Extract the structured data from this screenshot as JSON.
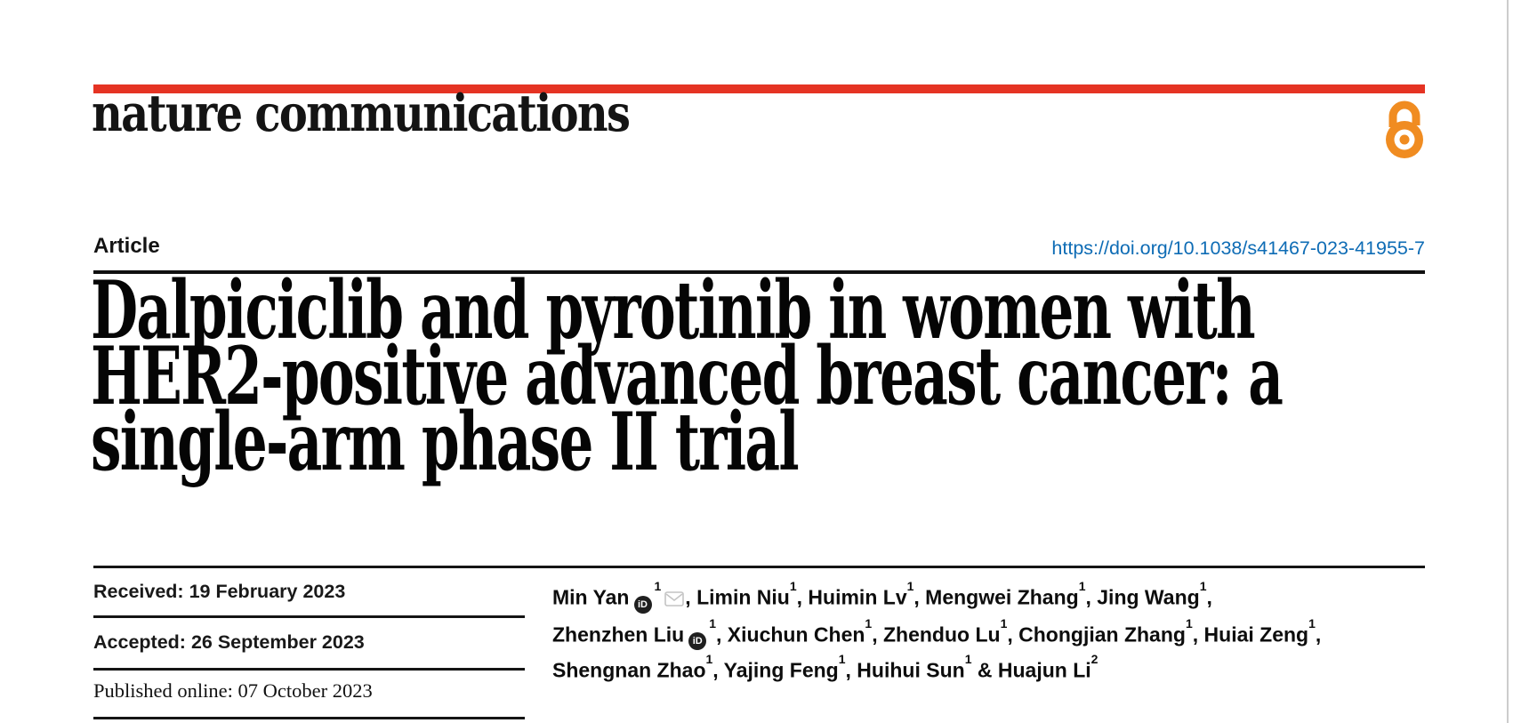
{
  "theme": {
    "accent_red": "#e53323",
    "open_access_orange": "#f08c21",
    "doi_link_blue": "#0e6cb5",
    "orcid_icon_dark": "#1f1f1f",
    "envelope_gray": "#c4c4c4",
    "page_edge_gray": "#cccccc"
  },
  "masthead": {
    "brand": "nature communications",
    "open_access_icon": "open-access-padlock"
  },
  "article_header": {
    "kicker": "Article",
    "doi": "https://doi.org/10.1038/s41467-023-41955-7"
  },
  "title": {
    "line1": "Dalpiciclib and pyrotinib in women with",
    "line2": "HER2-positive advanced breast cancer: a",
    "line3": "single-arm phase II trial"
  },
  "dates": {
    "received": {
      "label": "Received:",
      "value": "19 February 2023"
    },
    "accepted": {
      "label": "Accepted:",
      "value": "26 September 2023"
    },
    "published": {
      "label": "Published online:",
      "value": "07 October 2023"
    }
  },
  "authors": {
    "lines": [
      [
        {
          "t": "Min Yan"
        },
        {
          "icon": "orcid"
        },
        {
          "sup": "1"
        },
        {
          "icon": "mail"
        },
        {
          "t": ", Limin Niu"
        },
        {
          "sup": "1"
        },
        {
          "t": ", Huimin Lv"
        },
        {
          "sup": "1"
        },
        {
          "t": ", Mengwei Zhang"
        },
        {
          "sup": "1"
        },
        {
          "t": ", Jing Wang"
        },
        {
          "sup": "1"
        },
        {
          "t": ","
        }
      ],
      [
        {
          "t": "Zhenzhen Liu"
        },
        {
          "icon": "orcid"
        },
        {
          "sup": "1"
        },
        {
          "t": ", Xiuchun Chen"
        },
        {
          "sup": "1"
        },
        {
          "t": ", Zhenduo Lu"
        },
        {
          "sup": "1"
        },
        {
          "t": ", Chongjian Zhang"
        },
        {
          "sup": "1"
        },
        {
          "t": ", Huiai Zeng"
        },
        {
          "sup": "1"
        },
        {
          "t": ","
        }
      ],
      [
        {
          "t": "Shengnan Zhao"
        },
        {
          "sup": "1"
        },
        {
          "t": ", Yajing Feng"
        },
        {
          "sup": "1"
        },
        {
          "t": ", Huihui Sun"
        },
        {
          "sup": "1"
        },
        {
          "t": " & Huajun Li"
        },
        {
          "sup": "2"
        }
      ]
    ]
  }
}
